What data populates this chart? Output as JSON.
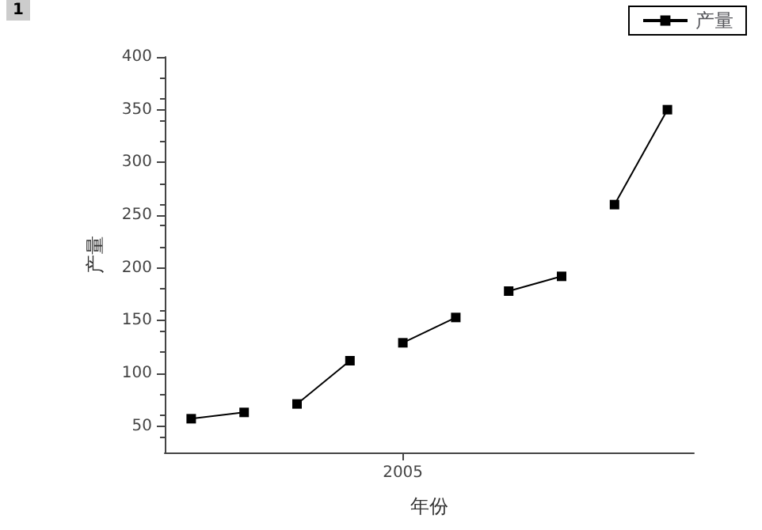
{
  "chart_data": {
    "type": "line",
    "xlabel": "年份",
    "ylabel": "产量",
    "annotations": [
      "1"
    ],
    "categories": [
      null,
      null,
      null,
      null,
      "2005",
      null,
      null,
      null,
      null,
      null
    ],
    "series": [
      {
        "name": "产量",
        "color": "#000000",
        "values": [
          57,
          63,
          null,
          null,
          null,
          null,
          null,
          null,
          null,
          null
        ]
      },
      {
        "color": "#000000",
        "values": [
          null,
          null,
          71,
          112,
          null,
          null,
          null,
          null,
          null,
          null
        ]
      },
      {
        "color": "#000000",
        "values": [
          null,
          null,
          null,
          null,
          129,
          153,
          null,
          null,
          null,
          null
        ]
      },
      {
        "color": "#000000",
        "values": [
          null,
          null,
          null,
          null,
          null,
          null,
          178,
          192,
          null,
          null
        ]
      },
      {
        "color": "#000000",
        "values": [
          null,
          null,
          null,
          null,
          null,
          null,
          null,
          null,
          260,
          350
        ]
      }
    ],
    "ylim": [
      25,
      400
    ],
    "yticks": [
      50,
      100,
      150,
      200,
      250,
      300,
      350,
      400
    ],
    "grid": false,
    "legend": "top right",
    "marker": "square",
    "line_style": "solid"
  }
}
